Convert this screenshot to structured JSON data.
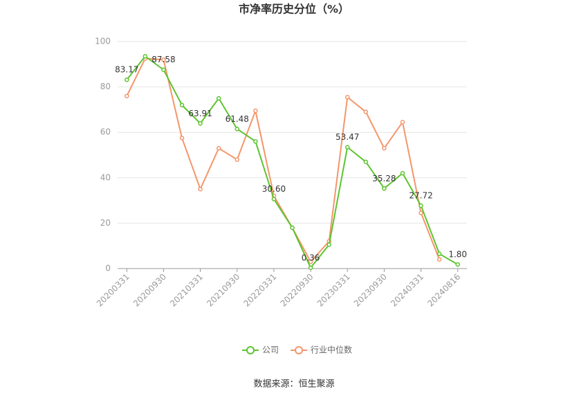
{
  "chart_data": {
    "type": "line",
    "title": "市净率历史分位（%）",
    "source": "数据来源：恒生聚源",
    "categories": [
      "20200331",
      null,
      "20200930",
      null,
      "20210331",
      null,
      "20210930",
      null,
      "20220331",
      null,
      "20220930",
      null,
      "20230331",
      null,
      "20230930",
      null,
      "20240331",
      null,
      "20240816"
    ],
    "series": [
      {
        "name": "公司",
        "color": "#5cc42e",
        "values": [
          83.17,
          93.5,
          87.58,
          72,
          63.91,
          75,
          61.48,
          56,
          30.6,
          18,
          0.36,
          10.5,
          53.47,
          47,
          35.28,
          42,
          27.72,
          6.5,
          1.8
        ],
        "value_labels": [
          "83.17",
          null,
          "87.58",
          null,
          "63.91",
          null,
          "61.48",
          null,
          "30.60",
          null,
          "0.36",
          null,
          "53.47",
          null,
          "35.28",
          null,
          "27.72",
          null,
          "1.80"
        ]
      },
      {
        "name": "行业中位数",
        "color": "#f4956a",
        "values": [
          76,
          92.5,
          92,
          57.5,
          35,
          53,
          48,
          69.5,
          32,
          18,
          3,
          12,
          75.5,
          69,
          53,
          64.5,
          24.5,
          4,
          null
        ]
      }
    ],
    "ylim": [
      0,
      100
    ],
    "yticks": [
      0,
      20,
      40,
      60,
      80,
      100
    ],
    "grid": true
  }
}
